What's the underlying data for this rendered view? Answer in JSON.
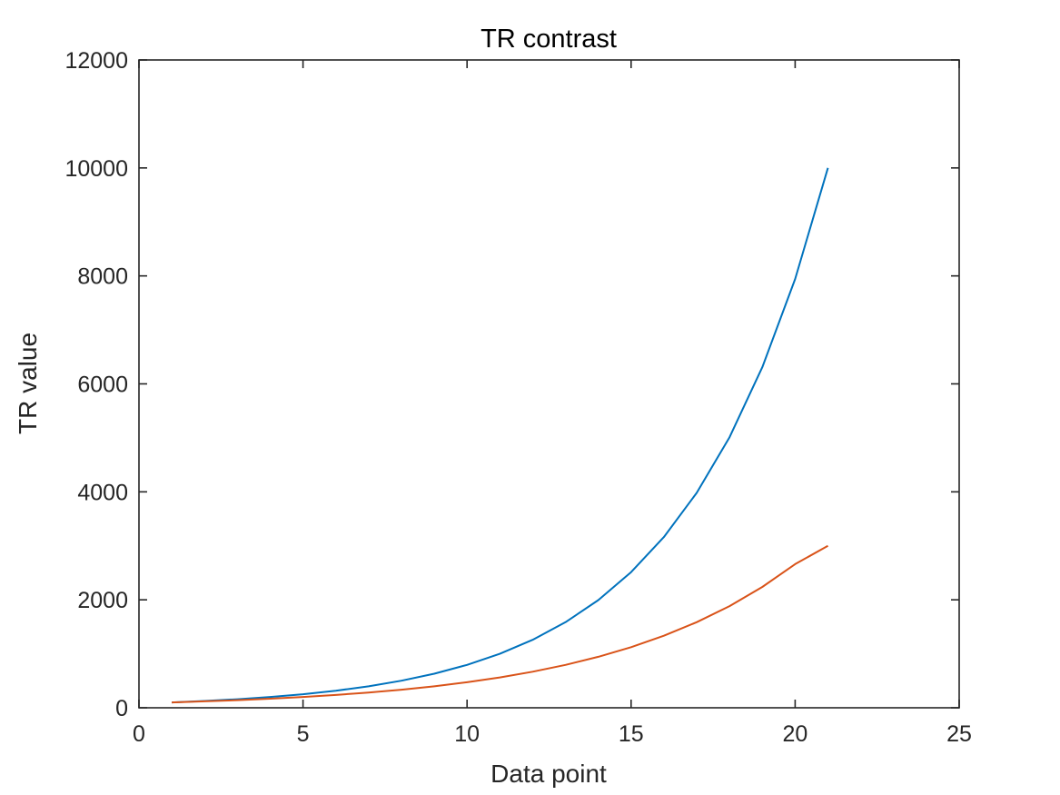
{
  "chart_data": {
    "type": "line",
    "title": "TR contrast",
    "xlabel": "Data point",
    "ylabel": "TR value",
    "xlim": [
      0,
      25
    ],
    "ylim": [
      0,
      12000
    ],
    "xticks": [
      "0",
      "5",
      "10",
      "15",
      "20",
      "25"
    ],
    "yticks": [
      "0",
      "2000",
      "4000",
      "6000",
      "8000",
      "10000",
      "12000"
    ],
    "grid": false,
    "legend": "none",
    "x": [
      1,
      2,
      3,
      4,
      5,
      6,
      7,
      8,
      9,
      10,
      11,
      12,
      13,
      14,
      15,
      16,
      17,
      18,
      19,
      20,
      21
    ],
    "series": [
      {
        "color": "#0072BD",
        "values": [
          100,
          126,
          158,
          200,
          251,
          316,
          398,
          501,
          631,
          794,
          1000,
          1259,
          1585,
          1995,
          2512,
          3162,
          3981,
          5012,
          6310,
          7943,
          10000
        ]
      },
      {
        "color": "#D95319",
        "values": [
          100,
          119,
          141,
          168,
          200,
          237,
          282,
          335,
          398,
          473,
          562,
          668,
          794,
          944,
          1122,
          1334,
          1585,
          1884,
          2239,
          2661,
          3000
        ]
      }
    ]
  }
}
